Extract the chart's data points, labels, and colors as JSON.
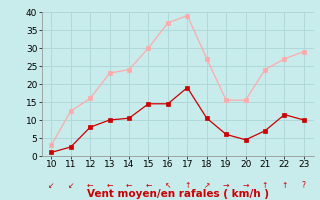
{
  "x": [
    10,
    11,
    12,
    13,
    14,
    15,
    16,
    17,
    18,
    19,
    20,
    21,
    22,
    23
  ],
  "rafales": [
    3,
    12.5,
    16,
    23,
    24,
    30,
    37,
    39,
    27,
    15.5,
    15.5,
    24,
    27,
    29
  ],
  "moyen": [
    1,
    2.5,
    8,
    10,
    10.5,
    14.5,
    14.5,
    19,
    10.5,
    6,
    4.5,
    7,
    11.5,
    10
  ],
  "wind_arrows": [
    "↙",
    "↙",
    "←",
    "←",
    "←",
    "←",
    "↖",
    "↑",
    "↗",
    "→",
    "→",
    "↑",
    "↑",
    "?"
  ],
  "line_color_rafales": "#ffaaaa",
  "line_color_moyen": "#cc0000",
  "bg_color": "#c8ecec",
  "grid_color": "#b0d8d8",
  "xlabel": "Vent moyen/en rafales ( km/h )",
  "xlabel_color": "#cc0000",
  "ylim": [
    0,
    40
  ],
  "yticks": [
    0,
    5,
    10,
    15,
    20,
    25,
    30,
    35,
    40
  ],
  "tick_fontsize": 6.5,
  "xlabel_fontsize": 7.5,
  "arrow_fontsize": 5.5
}
